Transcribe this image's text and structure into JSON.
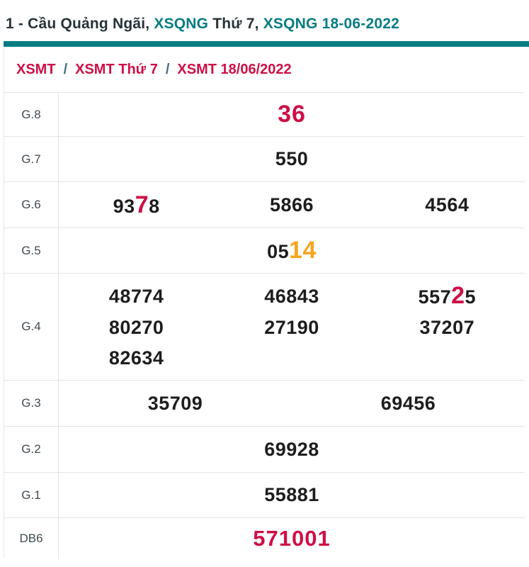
{
  "title": {
    "part1": "1 - Cầu Quảng Ngãi, ",
    "part2": "XSQNG",
    "part3": " Thứ 7, ",
    "part4": "XSQNG 18-06-2022"
  },
  "breadcrumb": {
    "sep": "/",
    "first": "XSMT",
    "second": "XSMT Thứ 7",
    "third": "XSMT 18/06/2022"
  },
  "table": {
    "g8": {
      "label": "G.8",
      "value": "36"
    },
    "g7": {
      "label": "G.7",
      "value": "550"
    },
    "g6": {
      "label": "G.6",
      "v1": {
        "a": "93",
        "b": "7",
        "c": "8"
      },
      "v2": "5866",
      "v3": "4564"
    },
    "g5": {
      "label": "G.5",
      "v1": {
        "a": "05",
        "b": "14",
        "c": ""
      }
    },
    "g4": {
      "label": "G.4",
      "v1": "48774",
      "v2": "46843",
      "v3": {
        "a": "557",
        "b": "2",
        "c": "5"
      },
      "v4": "80270",
      "v5": "27190",
      "v6": "37207",
      "v7": "82634"
    },
    "g3": {
      "label": "G.3",
      "v1": "35709",
      "v2": "69456"
    },
    "g2": {
      "label": "G.2",
      "value": "69928"
    },
    "g1": {
      "label": "G.1",
      "value": "55881"
    },
    "db6": {
      "label": "DB6",
      "value": "571001"
    }
  },
  "colors": {
    "teal": "#087c83",
    "crimson": "#ce0f45",
    "orange": "#f7a41c"
  }
}
